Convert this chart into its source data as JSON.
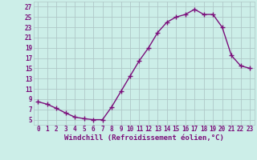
{
  "x": [
    0,
    1,
    2,
    3,
    4,
    5,
    6,
    7,
    8,
    9,
    10,
    11,
    12,
    13,
    14,
    15,
    16,
    17,
    18,
    19,
    20,
    21,
    22,
    23
  ],
  "y": [
    8.5,
    8.0,
    7.2,
    6.3,
    5.5,
    5.2,
    5.0,
    5.0,
    7.5,
    10.5,
    13.5,
    16.5,
    19.0,
    22.0,
    24.0,
    25.0,
    25.5,
    26.5,
    25.5,
    25.5,
    23.0,
    17.5,
    15.5,
    15.0
  ],
  "line_color": "#7b0f7b",
  "marker": "+",
  "markersize": 4,
  "linewidth": 1.0,
  "xlabel": "Windchill (Refroidissement éolien,°C)",
  "xlim": [
    -0.5,
    23.5
  ],
  "ylim": [
    4.0,
    28.0
  ],
  "yticks": [
    5,
    7,
    9,
    11,
    13,
    15,
    17,
    19,
    21,
    23,
    25,
    27
  ],
  "xticks": [
    0,
    1,
    2,
    3,
    4,
    5,
    6,
    7,
    8,
    9,
    10,
    11,
    12,
    13,
    14,
    15,
    16,
    17,
    18,
    19,
    20,
    21,
    22,
    23
  ],
  "bg_color": "#cceee8",
  "grid_color": "#b0c8c8",
  "line_purple": "#7b0f7b",
  "tick_fontsize": 5.5,
  "xlabel_fontsize": 6.5
}
